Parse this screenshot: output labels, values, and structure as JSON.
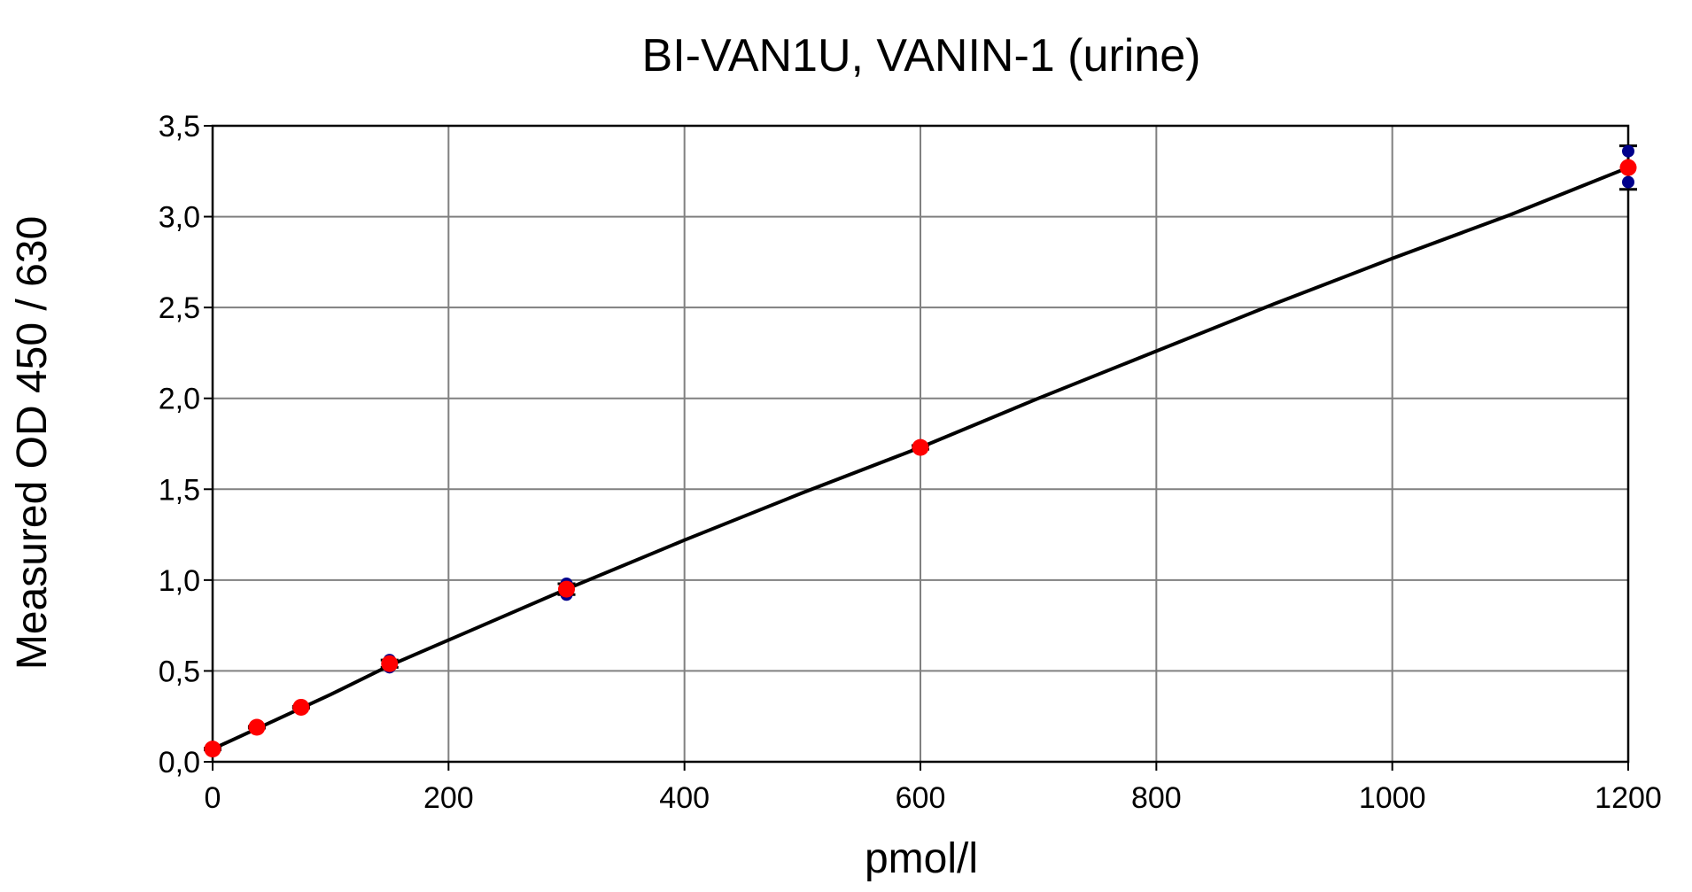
{
  "chart_data": {
    "type": "scatter",
    "title": "BI-VAN1U, VANIN-1 (urine)",
    "xlabel": "pmol/l",
    "ylabel": "Measured OD 450 / 630",
    "xlim": [
      0,
      1200
    ],
    "ylim": [
      0,
      3.5
    ],
    "x_ticks": [
      0,
      200,
      400,
      600,
      800,
      1000,
      1200
    ],
    "x_tick_labels": [
      "0",
      "200",
      "400",
      "600",
      "800",
      "1000",
      "1200"
    ],
    "y_ticks": [
      0,
      0.5,
      1.0,
      1.5,
      2.0,
      2.5,
      3.0,
      3.5
    ],
    "y_tick_labels": [
      "0,0",
      "0,5",
      "1,0",
      "1,5",
      "2,0",
      "2,5",
      "3,0",
      "3,5"
    ],
    "grid": true,
    "colors": {
      "mean_points": "#ff0000",
      "replicate_points": "#00008b",
      "fit_curve": "#000000",
      "error_bars": "#000000",
      "grid": "#808080"
    },
    "series": [
      {
        "kind": "replicates",
        "points": [
          {
            "x": 0,
            "y": 0.065
          },
          {
            "x": 0,
            "y": 0.075
          },
          {
            "x": 37.5,
            "y": 0.185
          },
          {
            "x": 37.5,
            "y": 0.195
          },
          {
            "x": 75,
            "y": 0.295
          },
          {
            "x": 75,
            "y": 0.305
          },
          {
            "x": 150,
            "y": 0.52
          },
          {
            "x": 150,
            "y": 0.56
          },
          {
            "x": 300,
            "y": 0.92
          },
          {
            "x": 300,
            "y": 0.98
          },
          {
            "x": 600,
            "y": 1.72
          },
          {
            "x": 600,
            "y": 1.74
          },
          {
            "x": 1200,
            "y": 3.19
          },
          {
            "x": 1200,
            "y": 3.36
          }
        ]
      },
      {
        "kind": "means",
        "points": [
          {
            "x": 0,
            "y": 0.07,
            "err": 0.005
          },
          {
            "x": 37.5,
            "y": 0.19,
            "err": 0.005
          },
          {
            "x": 75,
            "y": 0.3,
            "err": 0.005
          },
          {
            "x": 150,
            "y": 0.54,
            "err": 0.02
          },
          {
            "x": 300,
            "y": 0.95,
            "err": 0.03
          },
          {
            "x": 600,
            "y": 1.73,
            "err": 0.01
          },
          {
            "x": 1200,
            "y": 3.27,
            "err": 0.12
          }
        ]
      },
      {
        "kind": "fit",
        "points": [
          {
            "x": 0,
            "y": 0.07
          },
          {
            "x": 50,
            "y": 0.22
          },
          {
            "x": 100,
            "y": 0.37
          },
          {
            "x": 150,
            "y": 0.53
          },
          {
            "x": 200,
            "y": 0.67
          },
          {
            "x": 300,
            "y": 0.95
          },
          {
            "x": 400,
            "y": 1.22
          },
          {
            "x": 500,
            "y": 1.48
          },
          {
            "x": 600,
            "y": 1.73
          },
          {
            "x": 700,
            "y": 2.0
          },
          {
            "x": 800,
            "y": 2.26
          },
          {
            "x": 900,
            "y": 2.52
          },
          {
            "x": 1000,
            "y": 2.77
          },
          {
            "x": 1100,
            "y": 3.01
          },
          {
            "x": 1200,
            "y": 3.27
          }
        ]
      }
    ]
  }
}
